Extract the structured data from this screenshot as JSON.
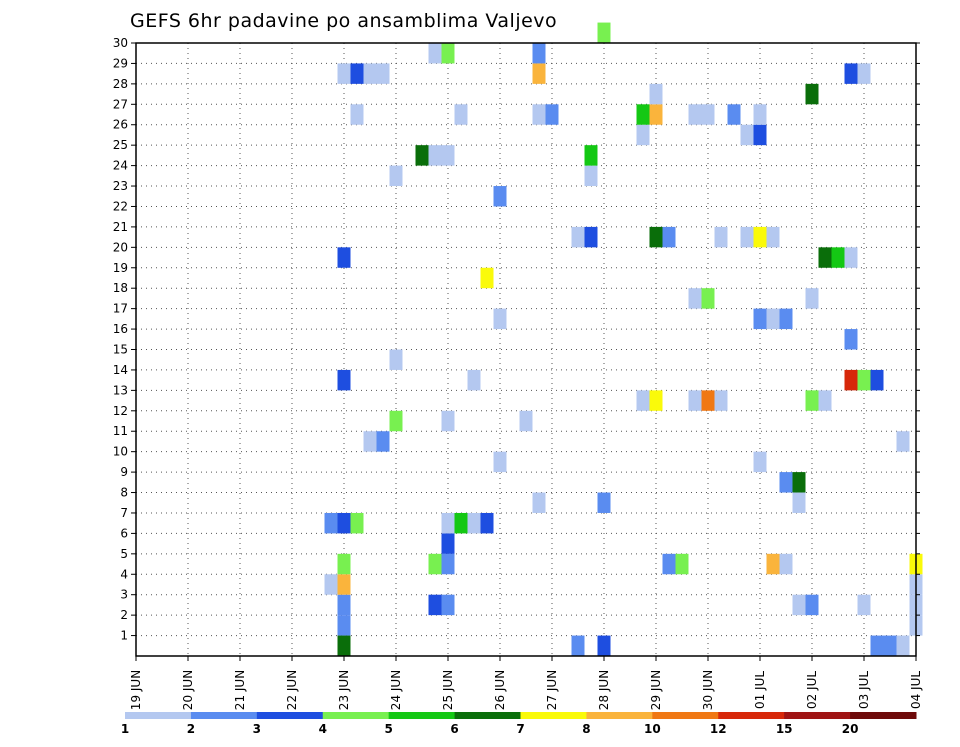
{
  "chart_data": {
    "type": "heatmap",
    "title": "GEFS 6hr padavine po ansamblima Valjevo",
    "xlabel": "",
    "ylabel": "",
    "x_ticks": [
      "19 JUN",
      "20 JUN",
      "21 JUN",
      "22 JUN",
      "23 JUN",
      "24 JUN",
      "25 JUN",
      "26 JUN",
      "27 JUN",
      "28 JUN",
      "29 JUN",
      "30 JUN",
      "01 JUL",
      "02 JUL",
      "03 JUL",
      "04 JUL"
    ],
    "y_ticks": [
      1,
      2,
      3,
      4,
      5,
      6,
      7,
      8,
      9,
      10,
      11,
      12,
      13,
      14,
      15,
      16,
      17,
      18,
      19,
      20,
      21,
      22,
      23,
      24,
      25,
      26,
      27,
      28,
      29,
      30
    ],
    "xlim": [
      0,
      15
    ],
    "ylim": [
      0,
      30
    ],
    "grid": true,
    "legend": {
      "placement": "bottom",
      "labels": [
        "1",
        "2",
        "3",
        "4",
        "5",
        "6",
        "7",
        "8",
        "10",
        "12",
        "15",
        "20"
      ],
      "colors": [
        "#b4c8f0",
        "#5a8cf0",
        "#1e4ee0",
        "#78f050",
        "#14c814",
        "#0a6e0a",
        "#fafa0a",
        "#fab43c",
        "#f07814",
        "#d7280a",
        "#a01414",
        "#6e0a0a"
      ]
    },
    "cells": [
      {
        "day": 4.0,
        "m": 1,
        "c": 1
      },
      {
        "day": 4.0,
        "m": 2,
        "c": 1
      },
      {
        "day": 4.0,
        "m": 0,
        "c": 5
      },
      {
        "day": 3.75,
        "m": 3,
        "c": 0
      },
      {
        "day": 4.0,
        "m": 3,
        "c": 7
      },
      {
        "day": 4.0,
        "m": 4,
        "c": 3
      },
      {
        "day": 3.75,
        "m": 6,
        "c": 1
      },
      {
        "day": 4.0,
        "m": 6,
        "c": 2
      },
      {
        "day": 4.25,
        "m": 6,
        "c": 3
      },
      {
        "day": 4.0,
        "m": 13,
        "c": 2
      },
      {
        "day": 4.0,
        "m": 19,
        "c": 2
      },
      {
        "day": 4.0,
        "m": 28,
        "c": 0
      },
      {
        "day": 4.25,
        "m": 28,
        "c": 2
      },
      {
        "day": 4.5,
        "m": 28,
        "c": 0
      },
      {
        "day": 4.75,
        "m": 28,
        "c": 0
      },
      {
        "day": 4.25,
        "m": 26,
        "c": 0
      },
      {
        "day": 4.5,
        "m": 10,
        "c": 0
      },
      {
        "day": 4.75,
        "m": 10,
        "c": 1
      },
      {
        "day": 5.0,
        "m": 11,
        "c": 3
      },
      {
        "day": 5.0,
        "m": 14,
        "c": 0
      },
      {
        "day": 5.0,
        "m": 23,
        "c": 0
      },
      {
        "day": 5.5,
        "m": 24,
        "c": 5
      },
      {
        "day": 5.75,
        "m": 24,
        "c": 0
      },
      {
        "day": 6.0,
        "m": 24,
        "c": 0
      },
      {
        "day": 5.75,
        "m": 29,
        "c": 0
      },
      {
        "day": 6.0,
        "m": 29,
        "c": 3
      },
      {
        "day": 5.75,
        "m": 2,
        "c": 2
      },
      {
        "day": 6.0,
        "m": 2,
        "c": 1
      },
      {
        "day": 5.75,
        "m": 4,
        "c": 3
      },
      {
        "day": 6.0,
        "m": 4,
        "c": 1
      },
      {
        "day": 6.0,
        "m": 5,
        "c": 2
      },
      {
        "day": 6.0,
        "m": 6,
        "c": 0
      },
      {
        "day": 6.25,
        "m": 6,
        "c": 4
      },
      {
        "day": 6.5,
        "m": 6,
        "c": 0
      },
      {
        "day": 6.75,
        "m": 6,
        "c": 2
      },
      {
        "day": 6.0,
        "m": 11,
        "c": 0
      },
      {
        "day": 6.25,
        "m": 26,
        "c": 0
      },
      {
        "day": 6.5,
        "m": 13,
        "c": 0
      },
      {
        "day": 6.75,
        "m": 18,
        "c": 6
      },
      {
        "day": 7.0,
        "m": 9,
        "c": 0
      },
      {
        "day": 7.0,
        "m": 16,
        "c": 0
      },
      {
        "day": 7.0,
        "m": 22,
        "c": 1
      },
      {
        "day": 7.5,
        "m": 11,
        "c": 0
      },
      {
        "day": 7.75,
        "m": 7,
        "c": 0
      },
      {
        "day": 7.75,
        "m": 26,
        "c": 0
      },
      {
        "day": 8.0,
        "m": 26,
        "c": 1
      },
      {
        "day": 7.75,
        "m": 28,
        "c": 7
      },
      {
        "day": 7.75,
        "m": 29,
        "c": 1
      },
      {
        "day": 8.5,
        "m": 0,
        "c": 1
      },
      {
        "day": 8.5,
        "m": 20,
        "c": 0
      },
      {
        "day": 8.75,
        "m": 20,
        "c": 2
      },
      {
        "day": 8.75,
        "m": 23,
        "c": 0
      },
      {
        "day": 8.75,
        "m": 24,
        "c": 4
      },
      {
        "day": 9.0,
        "m": 0,
        "c": 2
      },
      {
        "day": 9.0,
        "m": 7,
        "c": 1
      },
      {
        "day": 9.0,
        "m": 30,
        "c": 3
      },
      {
        "day": 9.75,
        "m": 25,
        "c": 0
      },
      {
        "day": 9.75,
        "m": 26,
        "c": 4
      },
      {
        "day": 10.0,
        "m": 26,
        "c": 7
      },
      {
        "day": 10.0,
        "m": 27,
        "c": 0
      },
      {
        "day": 9.75,
        "m": 12,
        "c": 0
      },
      {
        "day": 10.0,
        "m": 12,
        "c": 6
      },
      {
        "day": 10.0,
        "m": 20,
        "c": 5
      },
      {
        "day": 10.25,
        "m": 20,
        "c": 1
      },
      {
        "day": 10.25,
        "m": 4,
        "c": 1
      },
      {
        "day": 10.5,
        "m": 4,
        "c": 3
      },
      {
        "day": 10.75,
        "m": 17,
        "c": 0
      },
      {
        "day": 11.0,
        "m": 17,
        "c": 3
      },
      {
        "day": 10.75,
        "m": 26,
        "c": 0
      },
      {
        "day": 11.0,
        "m": 26,
        "c": 0
      },
      {
        "day": 10.75,
        "m": 12,
        "c": 0
      },
      {
        "day": 11.0,
        "m": 12,
        "c": 8
      },
      {
        "day": 11.25,
        "m": 12,
        "c": 0
      },
      {
        "day": 11.25,
        "m": 20,
        "c": 0
      },
      {
        "day": 11.5,
        "m": 26,
        "c": 1
      },
      {
        "day": 11.75,
        "m": 20,
        "c": 0
      },
      {
        "day": 11.75,
        "m": 25,
        "c": 0
      },
      {
        "day": 12.0,
        "m": 25,
        "c": 2
      },
      {
        "day": 12.0,
        "m": 26,
        "c": 0
      },
      {
        "day": 12.0,
        "m": 20,
        "c": 6
      },
      {
        "day": 12.25,
        "m": 20,
        "c": 0
      },
      {
        "day": 12.0,
        "m": 16,
        "c": 1
      },
      {
        "day": 12.25,
        "m": 16,
        "c": 0
      },
      {
        "day": 12.5,
        "m": 16,
        "c": 1
      },
      {
        "day": 12.0,
        "m": 9,
        "c": 0
      },
      {
        "day": 12.25,
        "m": 4,
        "c": 7
      },
      {
        "day": 12.5,
        "m": 4,
        "c": 0
      },
      {
        "day": 12.5,
        "m": 8,
        "c": 1
      },
      {
        "day": 12.75,
        "m": 8,
        "c": 5
      },
      {
        "day": 12.75,
        "m": 7,
        "c": 0
      },
      {
        "day": 12.75,
        "m": 2,
        "c": 0
      },
      {
        "day": 13.0,
        "m": 2,
        "c": 1
      },
      {
        "day": 13.0,
        "m": 17,
        "c": 0
      },
      {
        "day": 13.0,
        "m": 12,
        "c": 3
      },
      {
        "day": 13.25,
        "m": 12,
        "c": 0
      },
      {
        "day": 13.0,
        "m": 27,
        "c": 5
      },
      {
        "day": 13.25,
        "m": 19,
        "c": 5
      },
      {
        "day": 13.5,
        "m": 19,
        "c": 4
      },
      {
        "day": 13.75,
        "m": 19,
        "c": 0
      },
      {
        "day": 13.75,
        "m": 28,
        "c": 2
      },
      {
        "day": 14.0,
        "m": 28,
        "c": 0
      },
      {
        "day": 13.75,
        "m": 13,
        "c": 9
      },
      {
        "day": 14.0,
        "m": 13,
        "c": 3
      },
      {
        "day": 14.25,
        "m": 13,
        "c": 2
      },
      {
        "day": 13.75,
        "m": 15,
        "c": 1
      },
      {
        "day": 14.0,
        "m": 2,
        "c": 0
      },
      {
        "day": 14.25,
        "m": 0,
        "c": 1
      },
      {
        "day": 14.5,
        "m": 0,
        "c": 1
      },
      {
        "day": 14.75,
        "m": 0,
        "c": 0
      },
      {
        "day": 14.75,
        "m": 10,
        "c": 0
      },
      {
        "day": 15.0,
        "m": 1,
        "c": 0
      },
      {
        "day": 15.0,
        "m": 2,
        "c": 0
      },
      {
        "day": 15.0,
        "m": 3,
        "c": 0
      },
      {
        "day": 15.0,
        "m": 4,
        "c": 6
      }
    ]
  }
}
